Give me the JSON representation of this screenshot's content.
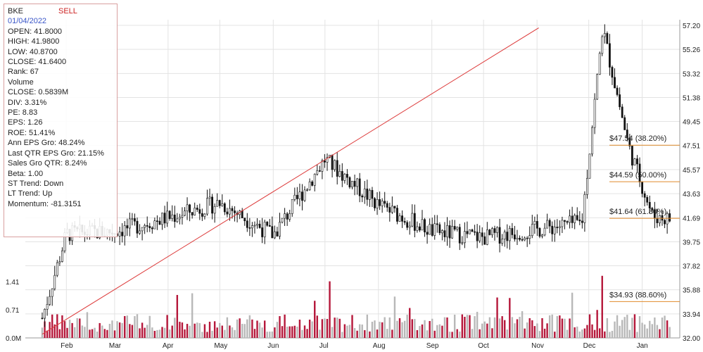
{
  "info": {
    "symbol": "BKE",
    "signal": "SELL",
    "date": "01/04/2022",
    "lines": [
      "OPEN: 41.8000",
      "HIGH: 41.9800",
      "LOW: 40.8700",
      "CLOSE: 41.6400",
      "Rank: 67",
      "Volume",
      "CLOSE: 0.5839M",
      "DIV: 3.31%",
      "PE: 8.83",
      "EPS: 1.26",
      "ROE: 51.41%",
      "Ann EPS Gro: 48.24%",
      "Last QTR EPS Gro: 21.15%",
      "Sales Gro QTR: 8.24%",
      "Beta: 1.00",
      "ST Trend: Down",
      "LT Trend: Up",
      "Momentum: -81.3151"
    ]
  },
  "colors": {
    "up_bar": "#b5173a",
    "down_bar": "#b8b8b8",
    "candle": "#111111",
    "trend_line": "#dd3b3b",
    "fib_line": "#e08a2a",
    "grid": "#e3e3e3"
  },
  "chart_data": {
    "type": "candlestick",
    "x_tick_labels": [
      "Feb",
      "Mar",
      "Apr",
      "May",
      "Jun",
      "Jul",
      "Aug",
      "Sep",
      "Oct",
      "Nov",
      "Dec",
      "Jan"
    ],
    "y_tick_labels": [
      "57.20",
      "55.26",
      "53.32",
      "51.38",
      "49.45",
      "47.51",
      "45.57",
      "43.63",
      "41.69",
      "39.75",
      "37.82",
      "35.88",
      "33.94",
      "32.00"
    ],
    "ylim": [
      32.0,
      57.2
    ],
    "volume_tick_labels": [
      "1.41",
      "0.71",
      "0.0M"
    ],
    "volume_ylim": [
      0,
      2.12
    ],
    "price_points": [
      [
        "Jan",
        33.6
      ],
      [
        "Feb",
        40.4
      ],
      [
        "Mar",
        40.6
      ],
      [
        "Apr",
        41.7
      ],
      [
        "May",
        42.9
      ],
      [
        "Jun",
        40.3
      ],
      [
        "Jul",
        46.4
      ],
      [
        "Aug",
        42.7
      ],
      [
        "Sep",
        40.6
      ],
      [
        "Oct",
        40.1
      ],
      [
        "Nov",
        41.3
      ],
      [
        "Nov",
        57.0
      ],
      [
        "Dec",
        47.5
      ],
      [
        "Dec",
        41.8
      ],
      [
        "Jan",
        41.6
      ]
    ],
    "trend_line": {
      "from": [
        "Jan",
        32.3
      ],
      "to": [
        "Nov",
        57.0
      ]
    },
    "fib_levels": [
      {
        "price": 47.54,
        "label": "$47.54 (38.20%)"
      },
      {
        "price": 44.59,
        "label": "$44.59 (50.00%)"
      },
      {
        "price": 41.64,
        "label": "$41.64 (61.80%)"
      },
      {
        "price": 34.93,
        "label": "$34.93 (88.60%)"
      }
    ]
  }
}
